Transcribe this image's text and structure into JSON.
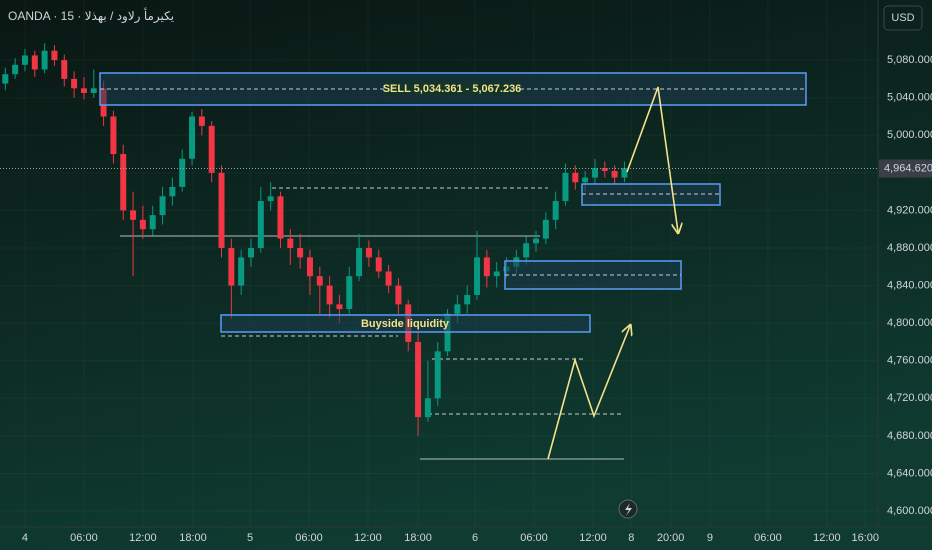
{
  "chart_data": {
    "type": "candlestick",
    "title": "OANDA · 15 · يكيرمأ رلاود / بهذلا",
    "currency": "USD",
    "sell_label": "SELL 5,034.361 - 5,067.236",
    "liquidity_label": "Buyside liquidity",
    "last_price": {
      "value": 4964.62,
      "label": "4,964.620"
    },
    "up_color": "#089981",
    "down_color": "#f23645",
    "xlim": [
      -2.54,
      86.8
    ],
    "ylim": [
      4583,
      5144
    ],
    "yticks": [
      {
        "value": 4600,
        "label": "4,600.000"
      },
      {
        "value": 4640,
        "label": "4,640.000"
      },
      {
        "value": 4680,
        "label": "4,680.000"
      },
      {
        "value": 4720,
        "label": "4,720.000"
      },
      {
        "value": 4760,
        "label": "4,760.000"
      },
      {
        "value": 4800,
        "label": "4,800.000"
      },
      {
        "value": 4840,
        "label": "4,840.000"
      },
      {
        "value": 4880,
        "label": "4,880.000"
      },
      {
        "value": 4920,
        "label": "4,920.000"
      },
      {
        "value": 4960,
        "label": "4,960.000"
      },
      {
        "value": 5000,
        "label": "5,000.000"
      },
      {
        "value": 5040,
        "label": "5,040.000"
      },
      {
        "value": 5080,
        "label": "5,080.000"
      }
    ],
    "xticks": [
      {
        "value": 0,
        "label": "4"
      },
      {
        "value": 6,
        "label": "06:00"
      },
      {
        "value": 12,
        "label": "12:00"
      },
      {
        "value": 17.1,
        "label": "18:00"
      },
      {
        "value": 22.9,
        "label": "5"
      },
      {
        "value": 28.9,
        "label": "06:00"
      },
      {
        "value": 34.9,
        "label": "12:00"
      },
      {
        "value": 40,
        "label": "18:00"
      },
      {
        "value": 45.8,
        "label": "6"
      },
      {
        "value": 51.8,
        "label": "06:00"
      },
      {
        "value": 57.8,
        "label": "12:00"
      },
      {
        "value": 61.7,
        "label": "8"
      },
      {
        "value": 65.7,
        "label": "20:00"
      },
      {
        "value": 69.7,
        "label": "9"
      },
      {
        "value": 75.6,
        "label": "06:00"
      },
      {
        "value": 81.6,
        "label": "12:00"
      },
      {
        "value": 85.5,
        "label": "16:00"
      }
    ],
    "x": [
      -2,
      -1,
      0,
      1,
      2,
      3,
      4,
      5,
      6,
      7,
      8,
      9,
      10,
      11,
      12,
      13,
      14,
      15,
      16,
      17,
      18,
      19,
      20,
      21,
      22,
      23,
      24,
      25,
      26,
      27,
      28,
      29,
      30,
      31,
      32,
      33,
      34,
      35,
      36,
      37,
      38,
      39,
      40,
      41,
      42,
      43,
      44,
      45,
      46,
      47,
      48,
      49,
      50,
      51,
      52,
      53,
      54,
      55,
      56,
      57,
      58,
      59,
      60,
      61
    ],
    "ohlc": [
      [
        5055,
        5072,
        5048,
        5065
      ],
      [
        5065,
        5082,
        5060,
        5075
      ],
      [
        5075,
        5092,
        5068,
        5085
      ],
      [
        5085,
        5090,
        5062,
        5070
      ],
      [
        5070,
        5098,
        5066,
        5090
      ],
      [
        5090,
        5096,
        5074,
        5080
      ],
      [
        5080,
        5086,
        5052,
        5060
      ],
      [
        5060,
        5068,
        5040,
        5050
      ],
      [
        5050,
        5062,
        5038,
        5045
      ],
      [
        5045,
        5070,
        5040,
        5050
      ],
      [
        5050,
        5058,
        5010,
        5020
      ],
      [
        5020,
        5026,
        4970,
        4980
      ],
      [
        4980,
        4990,
        4910,
        4920
      ],
      [
        4920,
        4940,
        4850,
        4910
      ],
      [
        4910,
        4925,
        4890,
        4900
      ],
      [
        4900,
        4925,
        4893,
        4915
      ],
      [
        4915,
        4945,
        4905,
        4935
      ],
      [
        4935,
        4955,
        4925,
        4945
      ],
      [
        4945,
        4985,
        4940,
        4975
      ],
      [
        4975,
        5025,
        4968,
        5020
      ],
      [
        5020,
        5028,
        5000,
        5010
      ],
      [
        5010,
        5015,
        4950,
        4960
      ],
      [
        4960,
        4968,
        4870,
        4880
      ],
      [
        4880,
        4890,
        4805,
        4840
      ],
      [
        4840,
        4878,
        4830,
        4870
      ],
      [
        4870,
        4890,
        4860,
        4880
      ],
      [
        4880,
        4945,
        4875,
        4930
      ],
      [
        4930,
        4950,
        4920,
        4935
      ],
      [
        4935,
        4940,
        4880,
        4890
      ],
      [
        4890,
        4900,
        4862,
        4880
      ],
      [
        4880,
        4895,
        4858,
        4870
      ],
      [
        4870,
        4878,
        4830,
        4850
      ],
      [
        4850,
        4860,
        4810,
        4840
      ],
      [
        4840,
        4850,
        4805,
        4820
      ],
      [
        4820,
        4830,
        4800,
        4815
      ],
      [
        4815,
        4860,
        4810,
        4850
      ],
      [
        4850,
        4895,
        4845,
        4880
      ],
      [
        4880,
        4888,
        4860,
        4870
      ],
      [
        4870,
        4878,
        4848,
        4855
      ],
      [
        4855,
        4862,
        4832,
        4840
      ],
      [
        4840,
        4848,
        4810,
        4820
      ],
      [
        4820,
        4825,
        4770,
        4780
      ],
      [
        4780,
        4790,
        4680,
        4700
      ],
      [
        4700,
        4760,
        4695,
        4720
      ],
      [
        4720,
        4780,
        4712,
        4770
      ],
      [
        4770,
        4815,
        4765,
        4810
      ],
      [
        4810,
        4830,
        4800,
        4820
      ],
      [
        4820,
        4840,
        4810,
        4830
      ],
      [
        4830,
        4898,
        4825,
        4870
      ],
      [
        4870,
        4878,
        4838,
        4850
      ],
      [
        4850,
        4865,
        4838,
        4855
      ],
      [
        4855,
        4870,
        4848,
        4860
      ],
      [
        4860,
        4878,
        4852,
        4870
      ],
      [
        4870,
        4892,
        4862,
        4885
      ],
      [
        4885,
        4898,
        4876,
        4890
      ],
      [
        4890,
        4918,
        4884,
        4910
      ],
      [
        4910,
        4940,
        4900,
        4930
      ],
      [
        4930,
        4970,
        4925,
        4960
      ],
      [
        4960,
        4968,
        4942,
        4950
      ],
      [
        4950,
        4962,
        4940,
        4955
      ],
      [
        4955,
        4975,
        4948,
        4965
      ],
      [
        4965,
        4972,
        4955,
        4962
      ],
      [
        4962,
        4968,
        4948,
        4955
      ],
      [
        4955,
        4972,
        4950,
        4965
      ]
    ]
  }
}
